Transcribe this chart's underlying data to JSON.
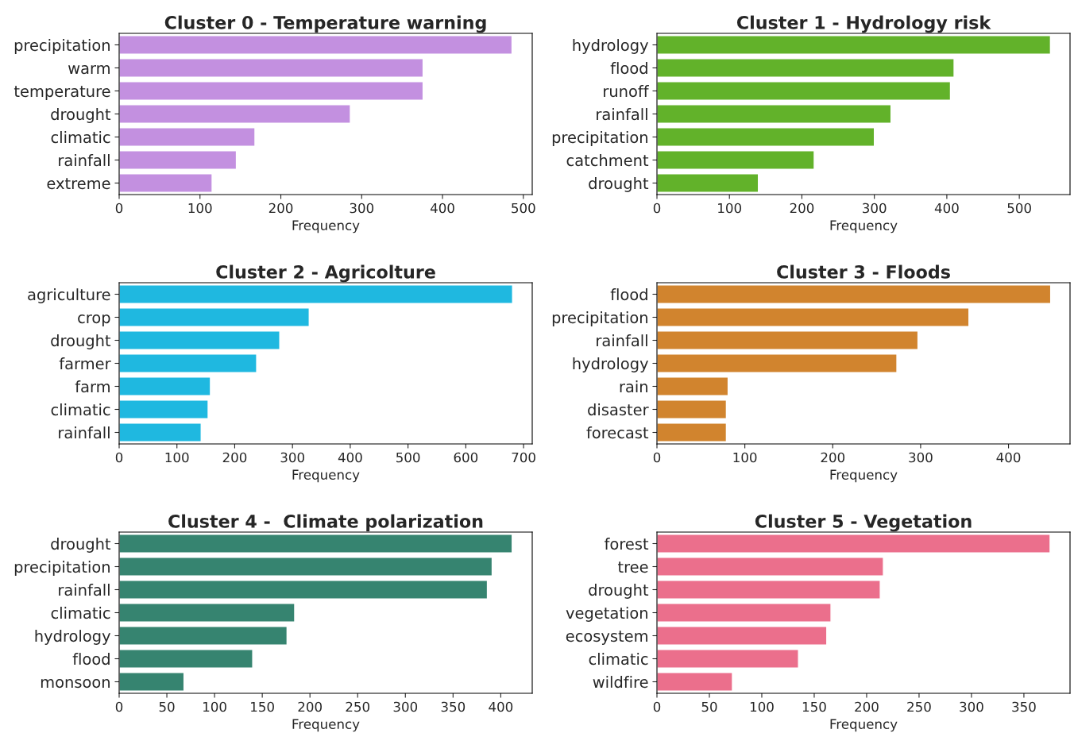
{
  "chart_data": [
    {
      "type": "bar",
      "orientation": "horizontal",
      "title": "Cluster 0 - Temperature warning",
      "xlabel": "Frequency",
      "categories": [
        "precipitation",
        "warm",
        "temperature",
        "drought",
        "climatic",
        "rainfall",
        "extreme"
      ],
      "values": [
        486,
        376,
        376,
        286,
        168,
        145,
        115
      ],
      "color": "#c390e0",
      "xlim": [
        0,
        511
      ],
      "xticks": [
        0,
        100,
        200,
        300,
        400,
        500
      ],
      "grid": false,
      "legend": false
    },
    {
      "type": "bar",
      "orientation": "horizontal",
      "title": "Cluster 1 - Hydrology risk",
      "xlabel": "Frequency",
      "categories": [
        "hydrology",
        "flood",
        "runoff",
        "rainfall",
        "precipitation",
        "catchment",
        "drought"
      ],
      "values": [
        543,
        410,
        405,
        323,
        300,
        217,
        140
      ],
      "color": "#62b22a",
      "xlim": [
        0,
        570
      ],
      "xticks": [
        0,
        100,
        200,
        300,
        400,
        500
      ],
      "grid": false,
      "legend": false
    },
    {
      "type": "bar",
      "orientation": "horizontal",
      "title": "Cluster 2 - Agricolture",
      "xlabel": "Frequency",
      "categories": [
        "agriculture",
        "crop",
        "drought",
        "farmer",
        "farm",
        "climatic",
        "rainfall"
      ],
      "values": [
        681,
        329,
        278,
        238,
        158,
        154,
        142
      ],
      "color": "#1fb8e0",
      "xlim": [
        0,
        715
      ],
      "xticks": [
        0,
        100,
        200,
        300,
        400,
        500,
        600,
        700
      ],
      "grid": false,
      "legend": false
    },
    {
      "type": "bar",
      "orientation": "horizontal",
      "title": "Cluster 3 - Floods",
      "xlabel": "Frequency",
      "categories": [
        "flood",
        "precipitation",
        "rainfall",
        "hydrology",
        "rain",
        "disaster",
        "forecast"
      ],
      "values": [
        448,
        355,
        297,
        273,
        81,
        79,
        79
      ],
      "color": "#d1842e",
      "xlim": [
        0,
        470
      ],
      "xticks": [
        0,
        100,
        200,
        300,
        400
      ],
      "grid": false,
      "legend": false
    },
    {
      "type": "bar",
      "orientation": "horizontal",
      "title": "Cluster 4 -  Climate polarization",
      "xlabel": "Frequency",
      "categories": [
        "drought",
        "precipitation",
        "rainfall",
        "climatic",
        "hydrology",
        "flood",
        "monsoon"
      ],
      "values": [
        412,
        391,
        386,
        184,
        176,
        140,
        68
      ],
      "color": "#368470",
      "xlim": [
        0,
        433
      ],
      "xticks": [
        0,
        50,
        100,
        150,
        200,
        250,
        300,
        350,
        400
      ],
      "grid": false,
      "legend": false
    },
    {
      "type": "bar",
      "orientation": "horizontal",
      "title": "Cluster 5 - Vegetation",
      "xlabel": "Frequency",
      "categories": [
        "forest",
        "tree",
        "drought",
        "vegetation",
        "ecosystem",
        "climatic",
        "wildfire"
      ],
      "values": [
        375,
        216,
        213,
        166,
        162,
        135,
        72
      ],
      "color": "#eb6f8c",
      "xlim": [
        0,
        394
      ],
      "xticks": [
        0,
        50,
        100,
        150,
        200,
        250,
        300,
        350
      ],
      "grid": false,
      "legend": false
    }
  ]
}
